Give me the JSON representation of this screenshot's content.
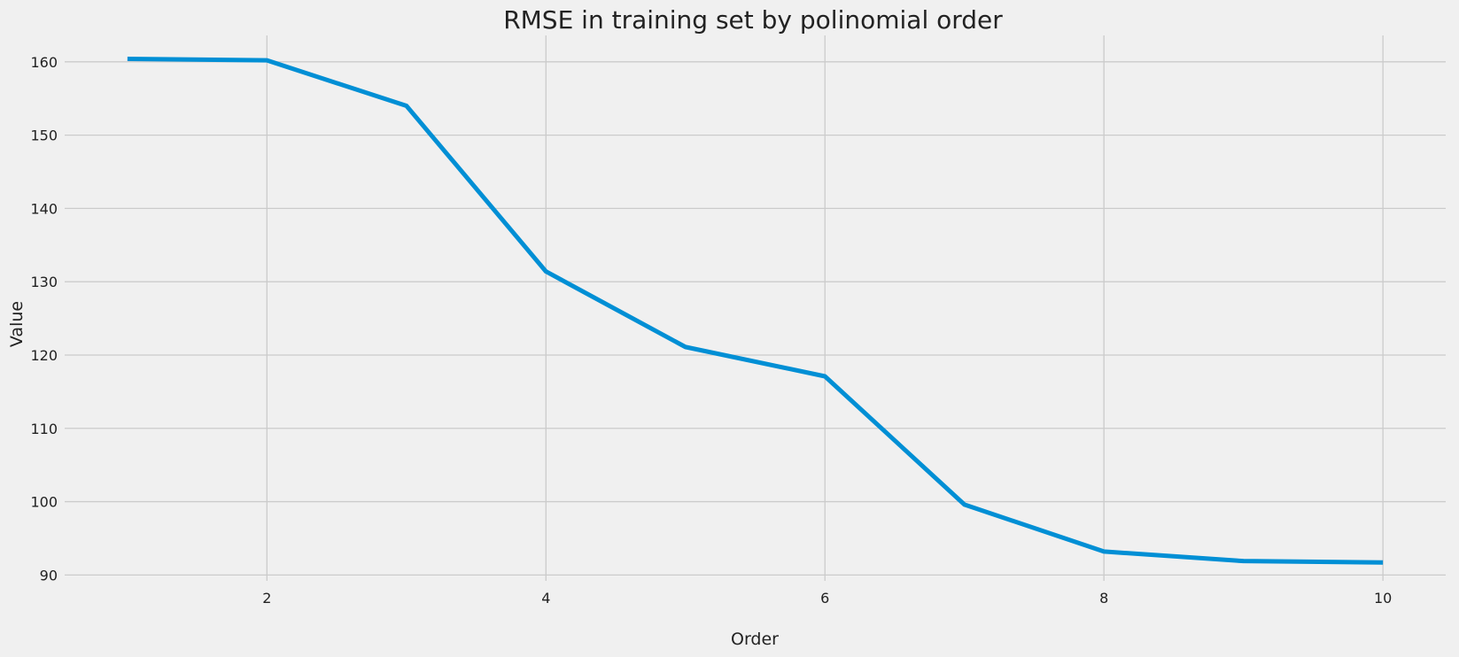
{
  "colors": {
    "background": "#f0f0f0",
    "grid": "#cbcbcb",
    "series": "#008fd5"
  },
  "chart_data": {
    "type": "line",
    "title": "RMSE in training set by polinomial order",
    "xlabel": "Order",
    "ylabel": "Value",
    "x": [
      1,
      2,
      3,
      4,
      5,
      6,
      7,
      8,
      9,
      10
    ],
    "series": [
      {
        "values": [
          160.4,
          160.2,
          154.0,
          131.4,
          121.1,
          117.1,
          99.6,
          93.2,
          91.9,
          91.7
        ]
      }
    ],
    "xlim": [
      0.55,
      10.45
    ],
    "ylim": [
      89.2,
      163.6
    ],
    "xticks": [
      2,
      4,
      6,
      8,
      10
    ],
    "yticks": [
      90,
      100,
      110,
      120,
      130,
      140,
      150,
      160
    ],
    "grid": true,
    "legend": "none"
  }
}
